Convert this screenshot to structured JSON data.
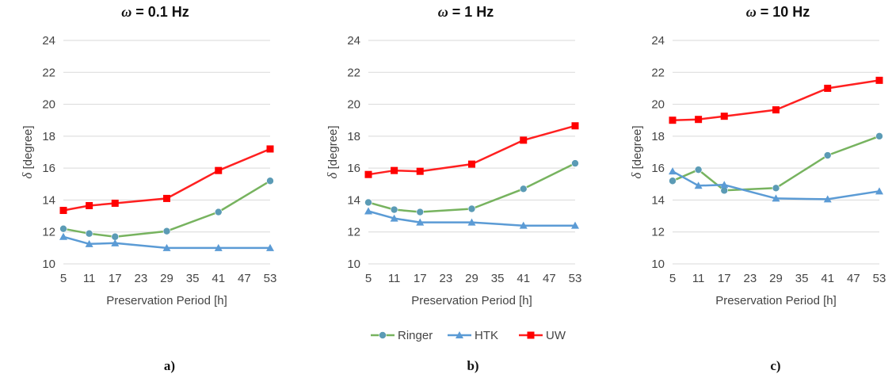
{
  "figure": {
    "captions": [
      "a)",
      "b)",
      "c)"
    ]
  },
  "legend": [
    {
      "name": "Ringer",
      "color": "#77B35F",
      "marker_color": "#5B9BB5",
      "marker": "circle"
    },
    {
      "name": "HTK",
      "color": "#5B9BD5",
      "marker_color": "#5B9BD5",
      "marker": "triangle"
    },
    {
      "name": "UW",
      "color": "#FF2020",
      "marker_color": "#FF0000",
      "marker": "square"
    }
  ],
  "chart_data": [
    {
      "type": "line",
      "title_prefix": "ω",
      "title_suffix": " = 0.1 Hz",
      "xlabel": "Preservation Period [h]",
      "ylabel_symbol": "δ",
      "ylabel_rest": " [degree]",
      "x": [
        5,
        11,
        17,
        29,
        41,
        53
      ],
      "xticks": [
        5,
        11,
        17,
        23,
        29,
        35,
        41,
        47,
        53
      ],
      "xlim": [
        5,
        53
      ],
      "ylim": [
        10,
        24
      ],
      "yticks": [
        10,
        12,
        14,
        16,
        18,
        20,
        22,
        24
      ],
      "grid": true,
      "series": [
        {
          "name": "Ringer",
          "values": [
            12.2,
            11.9,
            11.7,
            12.05,
            13.25,
            15.2
          ]
        },
        {
          "name": "HTK",
          "values": [
            11.7,
            11.25,
            11.3,
            11.0,
            11.0,
            11.0
          ]
        },
        {
          "name": "UW",
          "values": [
            13.35,
            13.65,
            13.8,
            14.1,
            15.85,
            17.2
          ]
        }
      ]
    },
    {
      "type": "line",
      "title_prefix": "ω",
      "title_suffix": " = 1 Hz",
      "xlabel": "Preservation Period [h]",
      "ylabel_symbol": "δ",
      "ylabel_rest": " [degree]",
      "x": [
        5,
        11,
        17,
        29,
        41,
        53
      ],
      "xticks": [
        5,
        11,
        17,
        23,
        29,
        35,
        41,
        47,
        53
      ],
      "xlim": [
        5,
        53
      ],
      "ylim": [
        10,
        24
      ],
      "yticks": [
        10,
        12,
        14,
        16,
        18,
        20,
        22,
        24
      ],
      "grid": true,
      "series": [
        {
          "name": "Ringer",
          "values": [
            13.85,
            13.4,
            13.25,
            13.45,
            14.7,
            16.3
          ]
        },
        {
          "name": "HTK",
          "values": [
            13.3,
            12.85,
            12.6,
            12.6,
            12.4,
            12.4
          ]
        },
        {
          "name": "UW",
          "values": [
            15.6,
            15.85,
            15.8,
            16.25,
            17.75,
            18.65
          ]
        }
      ]
    },
    {
      "type": "line",
      "title_prefix": "ω",
      "title_suffix": " = 10 Hz",
      "xlabel": "Preservation Period [h]",
      "ylabel_symbol": "δ",
      "ylabel_rest": " [degree]",
      "x": [
        5,
        11,
        17,
        29,
        41,
        53
      ],
      "xticks": [
        5,
        11,
        17,
        23,
        29,
        35,
        41,
        47,
        53
      ],
      "xlim": [
        5,
        53
      ],
      "ylim": [
        10,
        24
      ],
      "yticks": [
        10,
        12,
        14,
        16,
        18,
        20,
        22,
        24
      ],
      "grid": true,
      "series": [
        {
          "name": "Ringer",
          "values": [
            15.2,
            15.9,
            14.6,
            14.75,
            16.8,
            18.0
          ]
        },
        {
          "name": "HTK",
          "values": [
            15.8,
            14.9,
            14.95,
            14.1,
            14.05,
            14.55
          ]
        },
        {
          "name": "UW",
          "values": [
            19.0,
            19.05,
            19.25,
            19.65,
            21.0,
            21.5
          ]
        }
      ]
    }
  ]
}
